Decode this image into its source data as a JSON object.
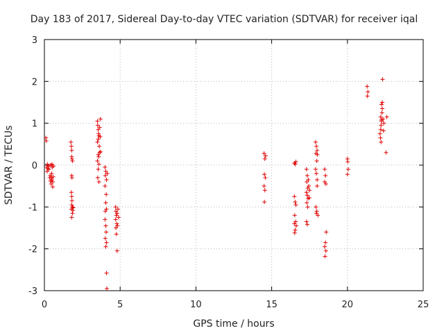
{
  "chart_data": {
    "type": "scatter",
    "title": "Day 183 of 2017, Sidereal Day-to-day VTEC variation (SDTVAR) for receiver iqal",
    "xlabel": "GPS time / hours",
    "ylabel": "SDTVAR / TECUs",
    "xlim": [
      0,
      25
    ],
    "ylim": [
      -3,
      3
    ],
    "xticks": [
      "0",
      "5",
      "10",
      "15",
      "20",
      "25"
    ],
    "yticks": [
      "-3",
      "-2",
      "-1",
      "0",
      "1",
      "2",
      "3"
    ],
    "grid": true,
    "marker": "+",
    "color": "#e00000",
    "series": [
      {
        "name": "SDTVAR",
        "points": [
          [
            0.1,
            0.65
          ],
          [
            0.12,
            0.58
          ],
          [
            0.15,
            -0.05
          ],
          [
            0.18,
            -0.15
          ],
          [
            0.2,
            0.02
          ],
          [
            0.22,
            -0.08
          ],
          [
            0.3,
            -0.1
          ],
          [
            0.3,
            -0.02
          ],
          [
            0.35,
            -0.3
          ],
          [
            0.38,
            -0.25
          ],
          [
            0.4,
            -0.38
          ],
          [
            0.42,
            0.0
          ],
          [
            0.45,
            -0.45
          ],
          [
            0.45,
            -0.3
          ],
          [
            0.48,
            -0.2
          ],
          [
            0.5,
            -0.35
          ],
          [
            0.5,
            0.02
          ],
          [
            0.52,
            -0.05
          ],
          [
            0.55,
            -0.4
          ],
          [
            0.55,
            -0.52
          ],
          [
            0.58,
            -0.28
          ],
          [
            0.6,
            -0.02
          ],
          [
            1.75,
            0.55
          ],
          [
            1.78,
            0.45
          ],
          [
            1.8,
            0.35
          ],
          [
            1.8,
            0.2
          ],
          [
            1.82,
            0.15
          ],
          [
            1.85,
            0.1
          ],
          [
            1.8,
            -0.25
          ],
          [
            1.82,
            -0.3
          ],
          [
            1.78,
            -0.65
          ],
          [
            1.8,
            -0.75
          ],
          [
            1.82,
            -0.85
          ],
          [
            1.8,
            -0.95
          ],
          [
            1.85,
            -1.0
          ],
          [
            1.78,
            -1.05
          ],
          [
            1.88,
            -1.08
          ],
          [
            1.85,
            -1.15
          ],
          [
            1.8,
            -1.25
          ],
          [
            1.9,
            -1.02
          ],
          [
            3.5,
            1.05
          ],
          [
            3.52,
            0.95
          ],
          [
            3.55,
            0.85
          ],
          [
            3.58,
            0.75
          ],
          [
            3.6,
            0.7
          ],
          [
            3.55,
            0.62
          ],
          [
            3.5,
            0.55
          ],
          [
            3.62,
            0.45
          ],
          [
            3.65,
            0.3
          ],
          [
            3.55,
            0.25
          ],
          [
            3.58,
            0.2
          ],
          [
            3.5,
            0.1
          ],
          [
            3.6,
            0.02
          ],
          [
            3.55,
            -0.1
          ],
          [
            3.52,
            -0.3
          ],
          [
            3.6,
            -0.4
          ],
          [
            3.7,
            1.1
          ],
          [
            3.65,
            0.9
          ],
          [
            3.68,
            0.68
          ],
          [
            3.7,
            0.32
          ],
          [
            4.0,
            -0.05
          ],
          [
            4.05,
            -0.15
          ],
          [
            4.02,
            -0.25
          ],
          [
            4.1,
            -0.35
          ],
          [
            4.0,
            -0.5
          ],
          [
            4.08,
            -0.7
          ],
          [
            4.05,
            -0.9
          ],
          [
            4.02,
            -1.1
          ],
          [
            4.1,
            -1.05
          ],
          [
            4.0,
            -1.3
          ],
          [
            4.05,
            -1.45
          ],
          [
            4.08,
            -1.6
          ],
          [
            4.02,
            -1.75
          ],
          [
            4.1,
            -1.85
          ],
          [
            4.05,
            -1.95
          ],
          [
            4.1,
            -2.58
          ],
          [
            4.12,
            -2.95
          ],
          [
            4.15,
            -0.2
          ],
          [
            4.7,
            -1.0
          ],
          [
            4.72,
            -1.1
          ],
          [
            4.75,
            -1.2
          ],
          [
            4.7,
            -1.3
          ],
          [
            4.78,
            -1.4
          ],
          [
            4.72,
            -1.5
          ],
          [
            4.75,
            -1.65
          ],
          [
            4.8,
            -1.15
          ],
          [
            4.85,
            -1.05
          ],
          [
            4.9,
            -1.25
          ],
          [
            4.82,
            -1.45
          ],
          [
            4.8,
            -2.05
          ],
          [
            14.5,
            0.28
          ],
          [
            14.55,
            0.15
          ],
          [
            14.6,
            0.22
          ],
          [
            14.52,
            -0.22
          ],
          [
            14.58,
            -0.3
          ],
          [
            14.5,
            -0.5
          ],
          [
            14.55,
            -0.6
          ],
          [
            14.52,
            -0.88
          ],
          [
            16.5,
            0.05
          ],
          [
            16.55,
            0.02
          ],
          [
            16.6,
            0.08
          ],
          [
            16.5,
            -0.75
          ],
          [
            16.55,
            -0.88
          ],
          [
            16.6,
            -0.95
          ],
          [
            16.52,
            -1.2
          ],
          [
            16.58,
            -1.35
          ],
          [
            16.5,
            -1.4
          ],
          [
            16.62,
            -1.45
          ],
          [
            16.55,
            -1.55
          ],
          [
            16.52,
            -1.62
          ],
          [
            17.3,
            -0.1
          ],
          [
            17.35,
            -0.25
          ],
          [
            17.32,
            -0.4
          ],
          [
            17.38,
            -0.55
          ],
          [
            17.3,
            -0.65
          ],
          [
            17.35,
            -0.72
          ],
          [
            17.4,
            -0.8
          ],
          [
            17.32,
            -0.9
          ],
          [
            17.38,
            -1.0
          ],
          [
            17.3,
            -1.35
          ],
          [
            17.35,
            -1.42
          ],
          [
            17.45,
            -0.5
          ],
          [
            17.5,
            -0.6
          ],
          [
            17.42,
            -0.35
          ],
          [
            17.48,
            -0.78
          ],
          [
            17.9,
            0.55
          ],
          [
            17.95,
            0.45
          ],
          [
            18.0,
            0.35
          ],
          [
            17.92,
            0.28
          ],
          [
            18.02,
            0.25
          ],
          [
            17.98,
            0.1
          ],
          [
            17.9,
            -0.1
          ],
          [
            17.95,
            -0.2
          ],
          [
            18.0,
            -0.5
          ],
          [
            17.92,
            -1.0
          ],
          [
            17.98,
            -1.1
          ],
          [
            18.05,
            -1.2
          ],
          [
            17.95,
            -1.15
          ],
          [
            18.0,
            -0.35
          ],
          [
            18.5,
            -0.1
          ],
          [
            18.55,
            -0.25
          ],
          [
            18.5,
            -0.4
          ],
          [
            18.58,
            -0.45
          ],
          [
            18.6,
            -1.6
          ],
          [
            18.55,
            -1.85
          ],
          [
            18.5,
            -1.95
          ],
          [
            18.58,
            -2.05
          ],
          [
            18.52,
            -2.18
          ],
          [
            20.0,
            0.15
          ],
          [
            20.02,
            0.08
          ],
          [
            20.05,
            -0.1
          ],
          [
            20.0,
            -0.22
          ],
          [
            21.3,
            1.88
          ],
          [
            21.35,
            1.75
          ],
          [
            21.32,
            1.65
          ],
          [
            22.15,
            0.75
          ],
          [
            22.18,
            0.65
          ],
          [
            22.2,
            0.85
          ],
          [
            22.22,
            0.95
          ],
          [
            22.25,
            1.05
          ],
          [
            22.2,
            1.15
          ],
          [
            22.28,
            1.25
          ],
          [
            22.3,
            1.35
          ],
          [
            22.25,
            1.45
          ],
          [
            22.3,
            1.5
          ],
          [
            22.32,
            2.05
          ],
          [
            22.22,
            0.55
          ],
          [
            22.35,
            1.1
          ],
          [
            22.4,
            1.0
          ],
          [
            22.38,
            0.82
          ],
          [
            22.55,
            0.3
          ],
          [
            22.6,
            1.15
          ],
          [
            22.25,
            1.08
          ]
        ]
      }
    ]
  }
}
